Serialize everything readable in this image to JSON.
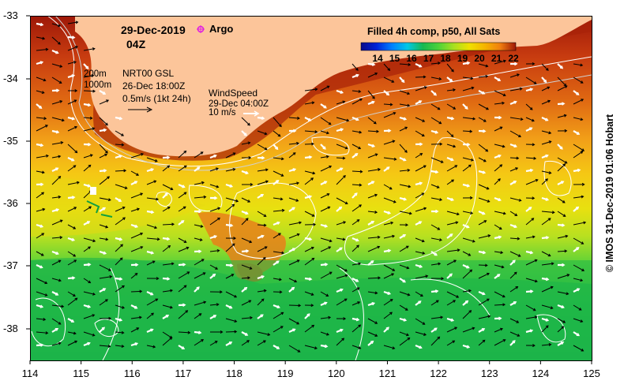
{
  "header": {
    "date": "29-Dec-2019",
    "time": "04Z",
    "argo_label": "Argo"
  },
  "colorbar": {
    "title": "Filled 4h comp, p50, All Sats",
    "ticks": [
      "14",
      "15",
      "16",
      "17",
      "18",
      "19",
      "20",
      "21",
      "22"
    ],
    "colors": [
      "#0a0a8a",
      "#0022d8",
      "#0080ff",
      "#00c8e6",
      "#18b850",
      "#4cd23a",
      "#a8e020",
      "#f0e000",
      "#f5b400",
      "#f07e10",
      "#d84a10",
      "#9e1808"
    ]
  },
  "legend": {
    "depth_200": "200m",
    "depth_1000": "1000m",
    "current_product": "NRT00 GSL",
    "current_time": "26-Dec 18:00Z",
    "current_scale": "0.5m/s (1kt 24h)",
    "wind_title": "WindSpeed",
    "wind_time": "29-Dec 04:00Z",
    "wind_scale": "10 m/s"
  },
  "axes": {
    "y_ticks": [
      "-33",
      "-34",
      "-35",
      "-36",
      "-37",
      "-38"
    ],
    "x_ticks": [
      "114",
      "115",
      "116",
      "117",
      "118",
      "119",
      "120",
      "121",
      "122",
      "123",
      "124",
      "125"
    ]
  },
  "credit": "© IMOS 31-Dec-2019 01:06 Hobart",
  "colors": {
    "land": "#fcc59a",
    "argo": "#e020e0",
    "contour": "#ffffff"
  }
}
